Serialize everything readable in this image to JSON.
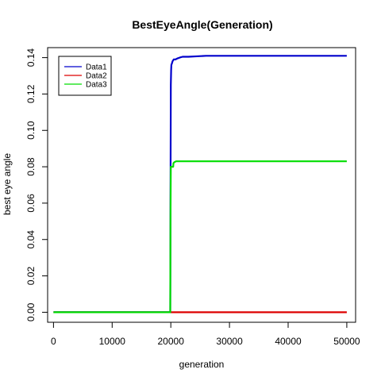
{
  "chart_data": {
    "type": "line",
    "title": "BestEyeAngle(Generation)",
    "xlabel": "generation",
    "ylabel": "best eye angle",
    "xlim": [
      -1000,
      51500
    ],
    "ylim": [
      -0.0055,
      0.1455
    ],
    "xticks": [
      0,
      10000,
      20000,
      30000,
      40000,
      50000
    ],
    "yticks": [
      0.0,
      0.02,
      0.04,
      0.06,
      0.08,
      0.1,
      0.12,
      0.14
    ],
    "xtick_labels": [
      "0",
      "10000",
      "20000",
      "30000",
      "40000",
      "50000"
    ],
    "ytick_labels": [
      "0.00",
      "0.02",
      "0.04",
      "0.06",
      "0.08",
      "0.10",
      "0.12",
      "0.14"
    ],
    "legend_position": "top-left",
    "series": [
      {
        "name": "Data1",
        "color": "#0000cc",
        "x": [
          0,
          19900,
          19950,
          20000,
          20050,
          20100,
          20200,
          20300,
          20500,
          20800,
          21100,
          21500,
          22000,
          23000,
          26000,
          50000
        ],
        "y": [
          0,
          0,
          0.06,
          0.125,
          0.133,
          0.136,
          0.137,
          0.138,
          0.139,
          0.139,
          0.1395,
          0.14,
          0.1405,
          0.1405,
          0.141,
          0.141
        ]
      },
      {
        "name": "Data2",
        "color": "#dd0000",
        "x": [
          0,
          50000
        ],
        "y": [
          0,
          0
        ]
      },
      {
        "name": "Data3",
        "color": "#00dd00",
        "x": [
          0,
          19900,
          19950,
          20000,
          20400,
          20450,
          20600,
          20900,
          50000
        ],
        "y": [
          0,
          0,
          0.05,
          0.08,
          0.08,
          0.082,
          0.0825,
          0.083,
          0.083
        ]
      }
    ]
  }
}
